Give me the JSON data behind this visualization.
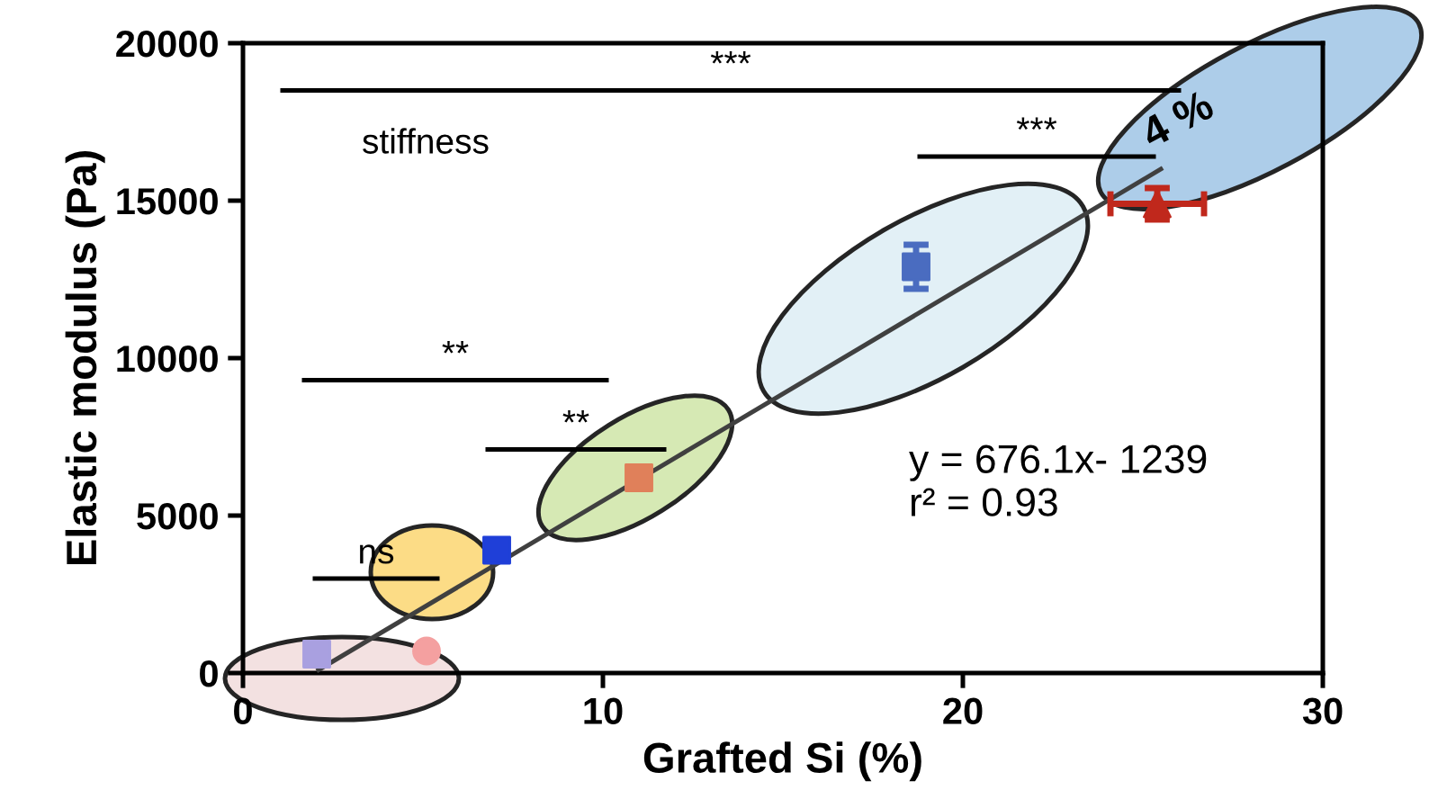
{
  "chart_data": {
    "type": "scatter",
    "xlabel": "Grafted Si (%)",
    "ylabel": "Elastic modulus (Pa)",
    "xlim": [
      0,
      30
    ],
    "xticks": [
      0,
      10,
      20,
      30
    ],
    "ylim": [
      0,
      20000
    ],
    "yticks": [
      0,
      5000,
      10000,
      15000,
      20000
    ],
    "grid": false,
    "legend": false,
    "series": [
      {
        "x": [
          2.1,
          25.5
        ],
        "values": [
          100,
          16000
        ],
        "type": "line",
        "color": "#404040",
        "marker": "none"
      },
      {
        "x": [
          1.1,
          26.0
        ],
        "values": [
          18500,
          18500
        ],
        "type": "line",
        "color": "#000000",
        "marker": "none"
      },
      {
        "x": [
          18.8,
          25.3
        ],
        "values": [
          16400,
          16400
        ],
        "type": "line",
        "color": "#000000",
        "marker": "none"
      },
      {
        "x": [
          1.7,
          10.1
        ],
        "values": [
          9300,
          9300
        ],
        "type": "line",
        "color": "#000000",
        "marker": "none"
      },
      {
        "x": [
          6.8,
          11.7
        ],
        "values": [
          7100,
          7100
        ],
        "type": "line",
        "color": "#000000",
        "marker": "none"
      },
      {
        "x": [
          2.0,
          5.4
        ],
        "values": [
          3000,
          3000
        ],
        "type": "line",
        "color": "#000000",
        "marker": "none"
      },
      {
        "x": [
          2.05
        ],
        "values": [
          600
        ],
        "color": "#a9a0e0",
        "marker": "square"
      },
      {
        "x": [
          5.1
        ],
        "values": [
          700
        ],
        "color": "#f4a0a0",
        "marker": "circle"
      },
      {
        "x": [
          7.05
        ],
        "values": [
          3900
        ],
        "color": "#1f3fd8",
        "marker": "square"
      },
      {
        "x": [
          11.0
        ],
        "values": [
          6200
        ],
        "color": "#e0805a",
        "marker": "square"
      },
      {
        "x": [
          18.7
        ],
        "values": [
          12900
        ],
        "errors": [
          700
        ],
        "color": "#4a6cc0",
        "marker": "square"
      },
      {
        "x": [
          25.4
        ],
        "values": [
          14900
        ],
        "errors": [
          500
        ],
        "xerrors": [
          1.3
        ],
        "color": "#c0281c",
        "marker": "triangle"
      }
    ],
    "annotations": [
      "***",
      "***",
      "**",
      "**",
      "ns",
      "stiffness",
      "y = 676.1x- 1239\nr² = 0.93",
      "4 %"
    ]
  }
}
